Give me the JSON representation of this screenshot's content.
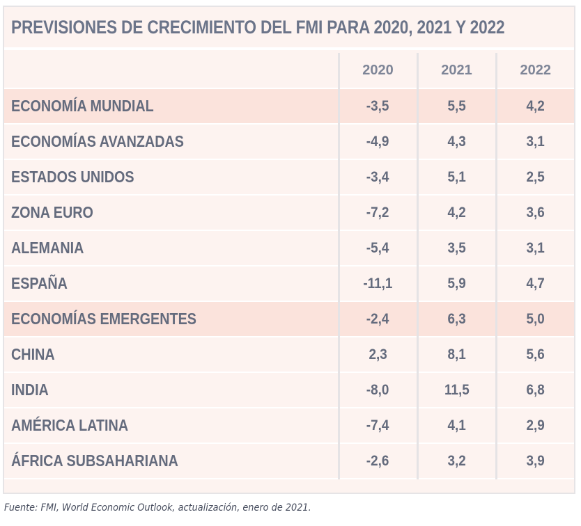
{
  "title": "PREVISIONES DE CRECIMIENTO DEL FMI PARA 2020, 2021 Y 2022",
  "source": "Fuente: FMI, World Economic Outlook, actualización, enero de 2021.",
  "colors": {
    "highlight_row": "#fbe3dc",
    "row": "#fdf3f0",
    "text": "#646b7d",
    "grid": "#e5e3e5"
  },
  "chart_data": {
    "type": "table",
    "title": "PREVISIONES DE CRECIMIENTO DEL FMI PARA 2020, 2021 Y 2022",
    "columns": [
      "2020",
      "2021",
      "2022"
    ],
    "rows": [
      {
        "label": "ECONOMÍA MUNDIAL",
        "values": [
          "-3,5",
          "5,5",
          "4,2"
        ],
        "highlight": true
      },
      {
        "label": "ECONOMÍAS AVANZADAS",
        "values": [
          "-4,9",
          "4,3",
          "3,1"
        ],
        "highlight": false
      },
      {
        "label": "ESTADOS UNIDOS",
        "values": [
          "-3,4",
          "5,1",
          "2,5"
        ],
        "highlight": false
      },
      {
        "label": "ZONA EURO",
        "values": [
          "-7,2",
          "4,2",
          "3,6"
        ],
        "highlight": false
      },
      {
        "label": "ALEMANIA",
        "values": [
          "-5,4",
          "3,5",
          "3,1"
        ],
        "highlight": false
      },
      {
        "label": "ESPAÑA",
        "values": [
          "-11,1",
          "5,9",
          "4,7"
        ],
        "highlight": false
      },
      {
        "label": "ECONOMÍAS EMERGENTES",
        "values": [
          "-2,4",
          "6,3",
          "5,0"
        ],
        "highlight": true
      },
      {
        "label": "CHINA",
        "values": [
          "2,3",
          "8,1",
          "5,6"
        ],
        "highlight": false
      },
      {
        "label": "INDIA",
        "values": [
          "-8,0",
          "11,5",
          "6,8"
        ],
        "highlight": false
      },
      {
        "label": "AMÉRICA LATINA",
        "values": [
          "-7,4",
          "4,1",
          "2,9"
        ],
        "highlight": false
      },
      {
        "label": "ÁFRICA SUBSAHARIANA",
        "values": [
          "-2,6",
          "3,2",
          "3,9"
        ],
        "highlight": false
      }
    ]
  }
}
